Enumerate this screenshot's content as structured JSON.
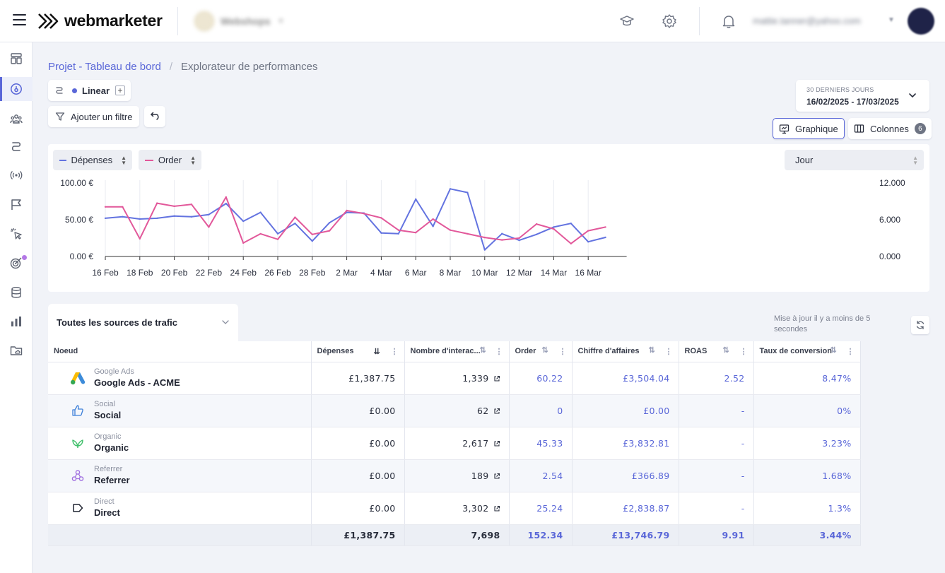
{
  "header": {
    "brand": "webmarketer",
    "workspace_name": "Webshops",
    "user_email": "mattie.tanner@yahoo.com"
  },
  "sidebar": {
    "items": [
      {
        "icon": "dashboard-icon"
      },
      {
        "icon": "performance-gauge-icon",
        "active": true
      },
      {
        "icon": "audience-icon"
      },
      {
        "icon": "journey-icon"
      },
      {
        "icon": "broadcast-icon"
      },
      {
        "icon": "flag-icon"
      },
      {
        "icon": "click-cursor-icon"
      },
      {
        "icon": "target-icon",
        "notification": true
      },
      {
        "icon": "database-icon"
      },
      {
        "icon": "bar-chart-icon"
      },
      {
        "icon": "folder-cloud-icon"
      }
    ]
  },
  "breadcrumb": {
    "parent": "Projet - Tableau de bord",
    "current": "Explorateur de performances"
  },
  "toolbar": {
    "attribution_model": "Linear",
    "filter_label": "Ajouter un filtre",
    "graph_label": "Graphique",
    "columns_label": "Colonnes",
    "columns_count": "6"
  },
  "date_range": {
    "label": "30 DERNIERS JOURS",
    "value": "16/02/2025 - 17/03/2025"
  },
  "chart_controls": {
    "metric_left": "Dépenses",
    "metric_right": "Order",
    "granularity": "Jour"
  },
  "colors": {
    "accent": "#5a67d8",
    "series_spend": "#6373e0",
    "series_order": "#e2589a"
  },
  "chart_data": {
    "type": "line",
    "x": [
      "16 Feb",
      "17 Feb",
      "18 Feb",
      "19 Feb",
      "20 Feb",
      "21 Feb",
      "22 Feb",
      "23 Feb",
      "24 Feb",
      "25 Feb",
      "26 Feb",
      "27 Feb",
      "28 Feb",
      "1 Mar",
      "2 Mar",
      "3 Mar",
      "4 Mar",
      "5 Mar",
      "6 Mar",
      "7 Mar",
      "8 Mar",
      "9 Mar",
      "10 Mar",
      "11 Mar",
      "12 Mar",
      "13 Mar",
      "14 Mar",
      "15 Mar",
      "16 Mar",
      "17 Mar"
    ],
    "x_tick_labels": [
      "16 Feb",
      "18 Feb",
      "20 Feb",
      "22 Feb",
      "24 Feb",
      "26 Feb",
      "28 Feb",
      "2 Mar",
      "4 Mar",
      "6 Mar",
      "8 Mar",
      "10 Mar",
      "12 Mar",
      "14 Mar",
      "16 Mar"
    ],
    "series": [
      {
        "name": "Dépenses",
        "axis": "left",
        "values": [
          52,
          54,
          51,
          52,
          55,
          54,
          57,
          72,
          48,
          60,
          31,
          45,
          21,
          46,
          60,
          59,
          32,
          31,
          78,
          41,
          92,
          87,
          9,
          31,
          22,
          30,
          40,
          45,
          20,
          26
        ]
      },
      {
        "name": "Order",
        "axis": "right",
        "values": [
          8100,
          8100,
          2900,
          8700,
          8200,
          8500,
          4800,
          9700,
          2200,
          3700,
          2800,
          6400,
          3600,
          4200,
          7500,
          7000,
          6300,
          4300,
          3900,
          6100,
          4300,
          3700,
          3100,
          2700,
          3000,
          5300,
          4500,
          2100,
          4200,
          4800
        ]
      }
    ],
    "ylim_left": [
      0,
      100
    ],
    "ylim_right": [
      0,
      12000
    ],
    "y_ticks_left": [
      "0.00 €",
      "50.00 €",
      "100.00 €"
    ],
    "y_ticks_right": [
      "0.000",
      "6.000",
      "12.000"
    ],
    "grid": "vertical"
  },
  "table": {
    "group_selector": "Toutes les sources de trafic",
    "update_note": "Mise à jour il y a moins de 5 secondes",
    "columns": [
      "Noeud",
      "Dépenses",
      "Nombre d'interac...",
      "Order",
      "Chiffre d'affaires",
      "ROAS",
      "Taux de conversion"
    ],
    "rows": [
      {
        "icon": "google-ads-icon",
        "category": "Google Ads",
        "name": "Google Ads - ACME",
        "spend": "£1,387.75",
        "interactions": "1,339",
        "order": "60.22",
        "revenue": "£3,504.04",
        "roas": "2.52",
        "conversion": "8.47%"
      },
      {
        "icon": "thumbs-up-icon",
        "category": "Social",
        "name": "Social",
        "spend": "£0.00",
        "interactions": "62",
        "order": "0",
        "revenue": "£0.00",
        "roas": "-",
        "conversion": "0%"
      },
      {
        "icon": "leaf-icon",
        "category": "Organic",
        "name": "Organic",
        "spend": "£0.00",
        "interactions": "2,617",
        "order": "45.33",
        "revenue": "£3,832.81",
        "roas": "-",
        "conversion": "3.23%"
      },
      {
        "icon": "referrer-icon",
        "category": "Referrer",
        "name": "Referrer",
        "spend": "£0.00",
        "interactions": "189",
        "order": "2.54",
        "revenue": "£366.89",
        "roas": "-",
        "conversion": "1.68%"
      },
      {
        "icon": "tag-icon",
        "category": "Direct",
        "name": "Direct",
        "spend": "£0.00",
        "interactions": "3,302",
        "order": "25.24",
        "revenue": "£2,838.87",
        "roas": "-",
        "conversion": "1.3%"
      }
    ],
    "totals": {
      "spend": "£1,387.75",
      "interactions": "7,698",
      "order": "152.34",
      "revenue": "£13,746.79",
      "roas": "9.91",
      "conversion": "3.44%"
    }
  }
}
